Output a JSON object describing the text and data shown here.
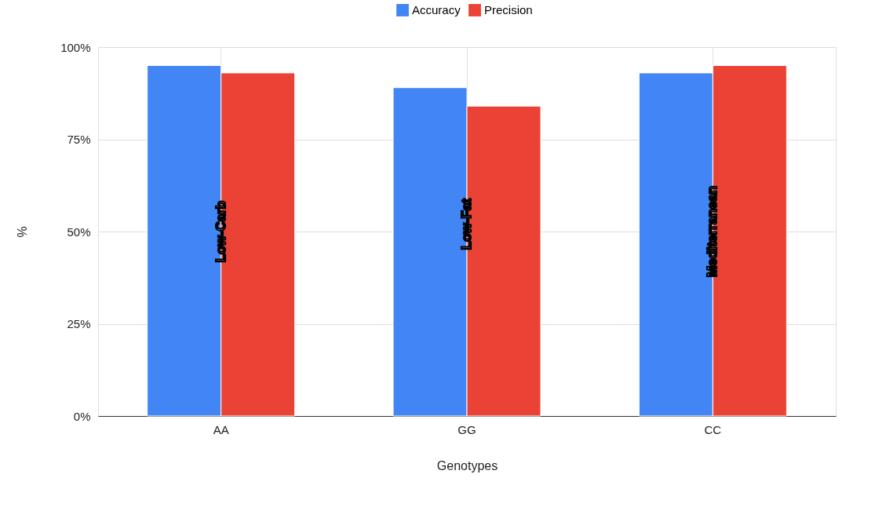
{
  "chart_data": {
    "type": "bar",
    "xlabel": "Genotypes",
    "ylabel": "%",
    "categories": [
      "AA",
      "GG",
      "CC"
    ],
    "series": [
      {
        "name": "Accuracy",
        "color": "#4285f4",
        "values": [
          95,
          89,
          93
        ]
      },
      {
        "name": "Precision",
        "color": "#ea4335",
        "values": [
          93,
          84,
          95
        ]
      }
    ],
    "ylim": [
      0,
      100
    ],
    "yticks": [
      {
        "value": 0,
        "label": "0%"
      },
      {
        "value": 25,
        "label": "25%"
      },
      {
        "value": 50,
        "label": "50%"
      },
      {
        "value": 75,
        "label": "75%"
      },
      {
        "value": 100,
        "label": "100%"
      }
    ],
    "grid": true,
    "legend": "top",
    "annotations": [
      {
        "text": "Low-Carb",
        "x": "AA",
        "y": 50
      },
      {
        "text": "Low-Fat",
        "x": "GG",
        "y": 52
      },
      {
        "text": "Mediterranean",
        "x": "CC",
        "y": 50
      }
    ]
  }
}
